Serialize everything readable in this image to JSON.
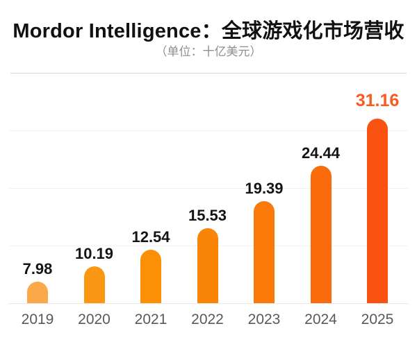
{
  "header": {
    "title": "Mordor Intelligence：全球游戏化市场营收",
    "subtitle": "（单位：十亿美元）"
  },
  "chart_data": {
    "type": "bar",
    "title": "Mordor Intelligence：全球游戏化市场营收",
    "subtitle": "（单位：十亿美元）",
    "unit": "十亿美元",
    "categories": [
      "2019",
      "2020",
      "2021",
      "2022",
      "2023",
      "2024",
      "2025"
    ],
    "values": [
      7.98,
      10.19,
      12.54,
      15.53,
      19.39,
      24.44,
      31.16
    ],
    "value_labels": [
      "7.98",
      "10.19",
      "12.54",
      "15.53",
      "19.39",
      "24.44",
      "31.16"
    ],
    "xlabel": "",
    "ylabel": "",
    "grid": true,
    "legend": false,
    "bar_colors": [
      "#FAA848",
      "#FB9813",
      "#FB8F06",
      "#FA8405",
      "#FA7908",
      "#FA6B0B",
      "#F95211"
    ],
    "value_label_colors": [
      "#141414",
      "#141414",
      "#141414",
      "#141414",
      "#141414",
      "#141414",
      "#FA5A1F"
    ],
    "highlight_index": 6,
    "highlight_color": "#FA5A1F",
    "axis_label_color": "#595959"
  }
}
